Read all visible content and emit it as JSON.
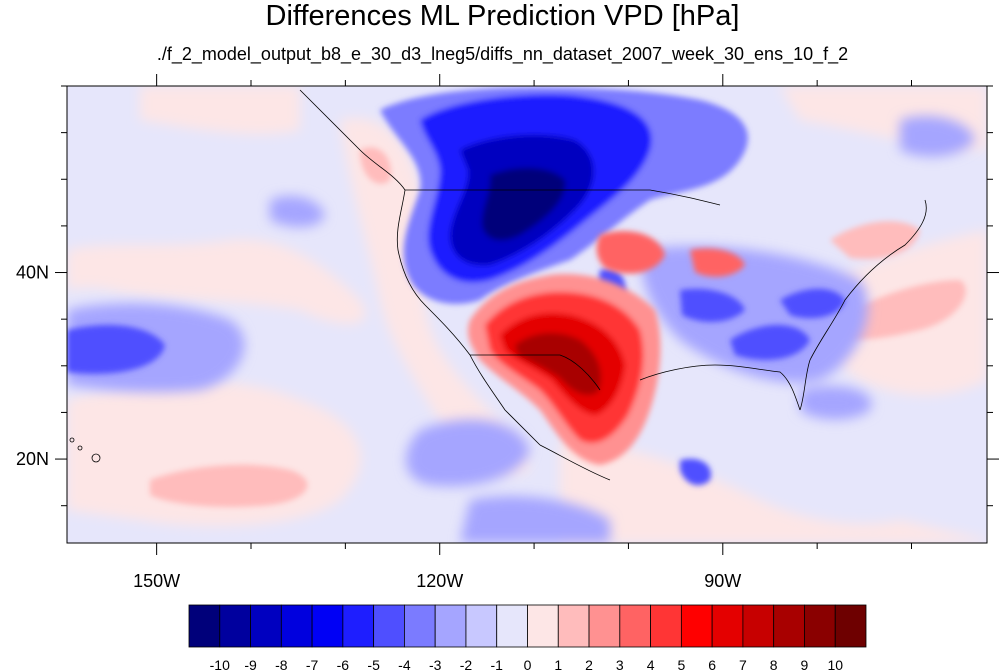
{
  "title": "Differences ML Prediction VPD [hPa]",
  "subtitle": "./f_2_model_output_b8_e_30_d3_lneg5/diffs_nn_dataset_2007_week_30_ens_10_f_2",
  "axes": {
    "lat_labels": [
      "40N",
      "20N"
    ],
    "lat_values": [
      40,
      20
    ],
    "lon_labels": [
      "150W",
      "120W",
      "90W"
    ],
    "lon_values": [
      -150,
      -120,
      -90
    ],
    "lon_range": [
      -159.5,
      -62
    ],
    "lat_range": [
      11,
      60
    ]
  },
  "colorbar": {
    "labels": [
      "-10",
      "-9",
      "-8",
      "-7",
      "-6",
      "-5",
      "-4",
      "-3",
      "-2",
      "-1",
      "0",
      "1",
      "2",
      "3",
      "4",
      "5",
      "6",
      "7",
      "8",
      "9",
      "10"
    ],
    "colors": [
      "#00007a",
      "#00009e",
      "#0000c0",
      "#0000de",
      "#0000f5",
      "#1e1eff",
      "#4f4fff",
      "#7b7bff",
      "#a5a5ff",
      "#c8c8ff",
      "#e6e6fb",
      "#fde6e6",
      "#ffbcbc",
      "#ff9191",
      "#ff6363",
      "#ff3535",
      "#ff0000",
      "#e40000",
      "#c70000",
      "#a80000",
      "#8a0000",
      "#6e0000"
    ]
  },
  "colors": {
    "background_field": "#e6e6fb",
    "slight_positive": "#fde6e6"
  }
}
